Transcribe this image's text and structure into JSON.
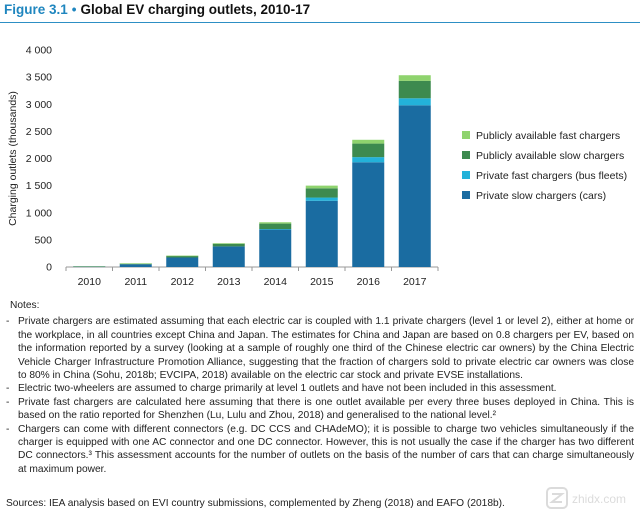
{
  "header": {
    "figure_label": "Figure 3.1",
    "title": "Global EV charging outlets, 2010-17"
  },
  "chart_data": {
    "type": "bar",
    "stacked": true,
    "ylabel": "Charging outlets (thousands)",
    "yticks": [
      "0",
      "500",
      "1 000",
      "1 500",
      "2 000",
      "2 500",
      "3 000",
      "3 500",
      "4 000"
    ],
    "ylim": [
      0,
      4000
    ],
    "categories": [
      "2010",
      "2011",
      "2012",
      "2013",
      "2014",
      "2015",
      "2016",
      "2017"
    ],
    "series": [
      {
        "name": "Private slow chargers (cars)",
        "color": "#1a6ca1",
        "values": [
          10,
          50,
          175,
          380,
          690,
          1220,
          1930,
          2980
        ]
      },
      {
        "name": "Private fast chargers (bus fleets)",
        "color": "#23b2d9",
        "values": [
          0,
          0,
          0,
          0,
          10,
          60,
          95,
          130
        ]
      },
      {
        "name": "Publicly available slow chargers",
        "color": "#3d8a4f",
        "values": [
          2,
          15,
          30,
          50,
          100,
          170,
          250,
          320
        ]
      },
      {
        "name": "Publicly available fast chargers",
        "color": "#8fd36e",
        "values": [
          0,
          2,
          5,
          8,
          25,
          50,
          70,
          105
        ]
      }
    ],
    "legend_position": "right",
    "grid": false
  },
  "notes": {
    "heading": "Notes:",
    "items": [
      "Private chargers are estimated assuming that each electric car is coupled with 1.1 private chargers (level 1 or level 2), either at home or the workplace, in all countries except China and Japan. The estimates for China and Japan are based on 0.8 chargers per EV, based on the information reported by a survey (looking at a sample of roughly one third of the Chinese electric car owners) by the China Electric Vehicle Charger Infrastructure Promotion Alliance, suggesting that the fraction of chargers sold to private electric car owners was close to 80% in China (Sohu, 2018b; EVCIPA, 2018) available on the electric car stock and private EVSE installations.",
      "Electric two-wheelers are assumed to charge primarily at level 1 outlets and have not been included in this assessment.",
      "Private fast chargers are calculated here assuming that there is one outlet available per every three buses deployed in China. This is based on the ratio reported for Shenzhen (Lu, Lulu and Zhou, 2018) and generalised to the national level.²",
      "Chargers can come with different connectors (e.g. DC CCS and CHAdeMO); it is possible to charge two vehicles simultaneously if the charger is equipped with one AC connector and one DC connector. However, this is not usually the case if the charger has two different DC connectors.³ This assessment accounts for the number of outlets on the basis of the number of cars that can charge simultaneously at maximum power."
    ]
  },
  "sources": "Sources: IEA analysis based on EVI country submissions, complemented by Zheng (2018) and EAFO (2018b).",
  "watermark": "zhidx.com"
}
